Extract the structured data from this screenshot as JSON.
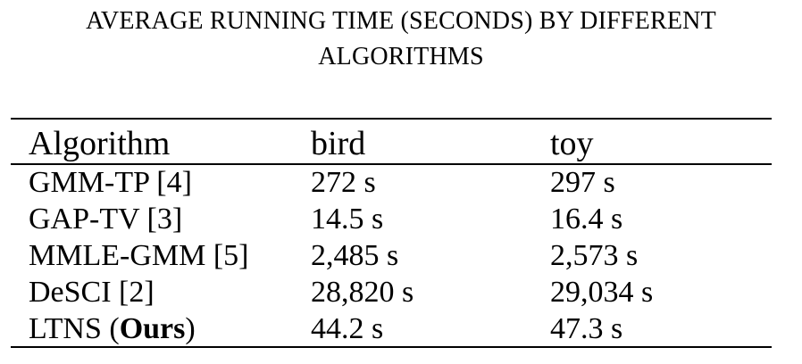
{
  "caption": {
    "line1": "AVERAGE RUNNING TIME (SECONDS) BY DIFFERENT",
    "line2": "ALGORITHMS"
  },
  "table": {
    "headers": [
      "Algorithm",
      "bird",
      "toy"
    ],
    "rows": [
      {
        "algorithm": "GMM-TP [4]",
        "bird": "272 s",
        "toy": "297 s"
      },
      {
        "algorithm": "GAP-TV [3]",
        "bird": "14.5 s",
        "toy": "16.4 s"
      },
      {
        "algorithm": "MMLE-GMM [5]",
        "bird": "2,485 s",
        "toy": "2,573 s"
      },
      {
        "algorithm": "DeSCI [2]",
        "bird": "28,820 s",
        "toy": "29,034 s"
      },
      {
        "algorithm_prefix": "LTNS (",
        "algorithm_bold": "Ours",
        "algorithm_suffix": ")",
        "bird": "44.2 s",
        "toy": "47.3 s"
      }
    ]
  }
}
